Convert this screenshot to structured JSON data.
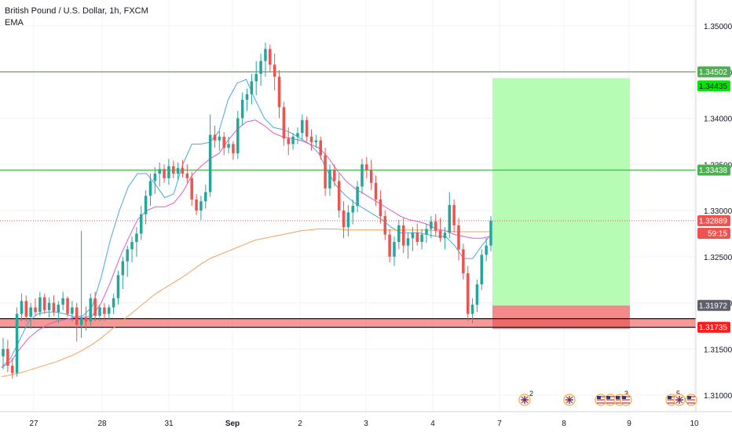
{
  "chart_data": {
    "type": "candlestick",
    "title": "British Pound / U.S. Dollar, 1h, FXCM",
    "indicator_label": "EMA",
    "x_axis": {
      "tick_labels": [
        "27",
        "28",
        "31",
        "Sep",
        "2",
        "3",
        "4",
        "7",
        "8",
        "9",
        "10"
      ]
    },
    "y_axis": {
      "range": [
        1.3085,
        1.3552
      ],
      "tick_labels": [
        "1.35000",
        "1.34500",
        "1.34000",
        "1.33500",
        "1.33000",
        "1.32500",
        "1.32000",
        "1.31500",
        "1.31000"
      ]
    },
    "price_levels": [
      {
        "label": "1.34502",
        "kind": "horizontal-line",
        "color": "#4caf50"
      },
      {
        "label": "1.34435",
        "kind": "take-profit",
        "color": "#00e600"
      },
      {
        "label": "1.33438",
        "kind": "horizontal-line",
        "color": "#4caf50"
      },
      {
        "label": "1.32889",
        "kind": "last-price",
        "color": "#f05350"
      },
      {
        "label": "59:15",
        "kind": "countdown",
        "color": "#f05350"
      },
      {
        "label": "1.31972",
        "kind": "entry",
        "color": "#5d606b"
      },
      {
        "label": "1.31735",
        "kind": "stop-loss",
        "color": "#ff1c1c"
      }
    ],
    "candles": [
      [
        1.3142,
        1.3162,
        1.3128,
        1.315
      ],
      [
        1.315,
        1.316,
        1.3125,
        1.3132
      ],
      [
        1.3132,
        1.314,
        1.3118,
        1.3124
      ],
      [
        1.3124,
        1.3195,
        1.312,
        1.3188
      ],
      [
        1.3188,
        1.321,
        1.318,
        1.3202
      ],
      [
        1.3202,
        1.3208,
        1.318,
        1.3185
      ],
      [
        1.3185,
        1.32,
        1.3172,
        1.3195
      ],
      [
        1.3195,
        1.3205,
        1.3186,
        1.319
      ],
      [
        1.319,
        1.3212,
        1.3186,
        1.3206
      ],
      [
        1.3206,
        1.321,
        1.3188,
        1.3192
      ],
      [
        1.3192,
        1.3206,
        1.3184,
        1.32
      ],
      [
        1.32,
        1.3208,
        1.3186,
        1.319
      ],
      [
        1.319,
        1.3202,
        1.3178,
        1.3198
      ],
      [
        1.3198,
        1.3212,
        1.3192,
        1.3205
      ],
      [
        1.3205,
        1.3207,
        1.3185,
        1.3188
      ],
      [
        1.3188,
        1.3202,
        1.318,
        1.3195
      ],
      [
        1.3195,
        1.32,
        1.3158,
        1.3176
      ],
      [
        1.3176,
        1.3278,
        1.3162,
        1.3184
      ],
      [
        1.3184,
        1.3196,
        1.317,
        1.318
      ],
      [
        1.318,
        1.321,
        1.3175,
        1.3205
      ],
      [
        1.3205,
        1.3212,
        1.318,
        1.3186
      ],
      [
        1.3186,
        1.3198,
        1.318,
        1.3195
      ],
      [
        1.3195,
        1.32,
        1.318,
        1.3188
      ],
      [
        1.3188,
        1.3198,
        1.3182,
        1.3195
      ],
      [
        1.3195,
        1.321,
        1.3188,
        1.3205
      ],
      [
        1.3205,
        1.3235,
        1.3198,
        1.323
      ],
      [
        1.323,
        1.325,
        1.3215,
        1.3245
      ],
      [
        1.3245,
        1.3262,
        1.3228,
        1.3258
      ],
      [
        1.3258,
        1.3272,
        1.3244,
        1.3266
      ],
      [
        1.3266,
        1.3282,
        1.325,
        1.3275
      ],
      [
        1.3275,
        1.3305,
        1.3268,
        1.3296
      ],
      [
        1.3296,
        1.3322,
        1.3285,
        1.3316
      ],
      [
        1.3316,
        1.334,
        1.3305,
        1.3332
      ],
      [
        1.3332,
        1.3347,
        1.3318,
        1.334
      ],
      [
        1.334,
        1.3352,
        1.3326,
        1.3345
      ],
      [
        1.3345,
        1.335,
        1.333,
        1.3335
      ],
      [
        1.3335,
        1.3356,
        1.3328,
        1.3348
      ],
      [
        1.3348,
        1.3354,
        1.3335,
        1.334
      ],
      [
        1.334,
        1.3352,
        1.3334,
        1.3346
      ],
      [
        1.3346,
        1.3355,
        1.3336,
        1.334
      ],
      [
        1.334,
        1.335,
        1.333,
        1.3335
      ],
      [
        1.3335,
        1.3342,
        1.3305,
        1.3312
      ],
      [
        1.3312,
        1.3318,
        1.3295,
        1.33
      ],
      [
        1.33,
        1.3316,
        1.329,
        1.331
      ],
      [
        1.331,
        1.3328,
        1.3302,
        1.332
      ],
      [
        1.332,
        1.3404,
        1.3315,
        1.3382
      ],
      [
        1.3382,
        1.3392,
        1.3368,
        1.3376
      ],
      [
        1.3376,
        1.3386,
        1.3365,
        1.338
      ],
      [
        1.338,
        1.3385,
        1.336,
        1.3368
      ],
      [
        1.3368,
        1.338,
        1.3362,
        1.3372
      ],
      [
        1.3372,
        1.3375,
        1.3355,
        1.3362
      ],
      [
        1.3362,
        1.3408,
        1.3356,
        1.34
      ],
      [
        1.34,
        1.3428,
        1.3392,
        1.342
      ],
      [
        1.342,
        1.3432,
        1.3408,
        1.3426
      ],
      [
        1.3426,
        1.3448,
        1.3415,
        1.344
      ],
      [
        1.344,
        1.3462,
        1.3425,
        1.3448
      ],
      [
        1.3448,
        1.347,
        1.3435,
        1.3462
      ],
      [
        1.3462,
        1.3482,
        1.3445,
        1.3475
      ],
      [
        1.3475,
        1.348,
        1.345,
        1.3458
      ],
      [
        1.3458,
        1.347,
        1.343,
        1.3445
      ],
      [
        1.3445,
        1.3452,
        1.34,
        1.3412
      ],
      [
        1.3412,
        1.3418,
        1.337,
        1.3378
      ],
      [
        1.3378,
        1.339,
        1.336,
        1.3372
      ],
      [
        1.3372,
        1.3384,
        1.3366,
        1.338
      ],
      [
        1.338,
        1.339,
        1.3372,
        1.3384
      ],
      [
        1.3384,
        1.3404,
        1.3376,
        1.3398
      ],
      [
        1.3398,
        1.3402,
        1.3375,
        1.338
      ],
      [
        1.338,
        1.3388,
        1.3365,
        1.3374
      ],
      [
        1.3374,
        1.3382,
        1.3368,
        1.3376
      ],
      [
        1.3376,
        1.338,
        1.3355,
        1.336
      ],
      [
        1.336,
        1.3368,
        1.3316,
        1.3324
      ],
      [
        1.3324,
        1.335,
        1.3316,
        1.3344
      ],
      [
        1.3344,
        1.335,
        1.3326,
        1.3332
      ],
      [
        1.3332,
        1.334,
        1.3292,
        1.33
      ],
      [
        1.33,
        1.331,
        1.327,
        1.3282
      ],
      [
        1.3282,
        1.3306,
        1.3272,
        1.3298
      ],
      [
        1.3298,
        1.3312,
        1.3285,
        1.3305
      ],
      [
        1.3305,
        1.3332,
        1.3298,
        1.3326
      ],
      [
        1.3326,
        1.3356,
        1.3318,
        1.335
      ],
      [
        1.335,
        1.3358,
        1.3335,
        1.3344
      ],
      [
        1.3344,
        1.3355,
        1.3322,
        1.333
      ],
      [
        1.333,
        1.3338,
        1.3305,
        1.3312
      ],
      [
        1.3312,
        1.3322,
        1.3286,
        1.3294
      ],
      [
        1.3294,
        1.33,
        1.3268,
        1.3274
      ],
      [
        1.3274,
        1.328,
        1.3244,
        1.325
      ],
      [
        1.325,
        1.3272,
        1.324,
        1.3266
      ],
      [
        1.3266,
        1.329,
        1.3258,
        1.3284
      ],
      [
        1.3284,
        1.3292,
        1.3254,
        1.3262
      ],
      [
        1.3262,
        1.3276,
        1.3248,
        1.327
      ],
      [
        1.327,
        1.3282,
        1.3256,
        1.3276
      ],
      [
        1.3276,
        1.3286,
        1.3262,
        1.3266
      ],
      [
        1.3266,
        1.328,
        1.3258,
        1.3274
      ],
      [
        1.3274,
        1.3286,
        1.3265,
        1.328
      ],
      [
        1.328,
        1.3294,
        1.327,
        1.3288
      ],
      [
        1.3288,
        1.3296,
        1.3272,
        1.3278
      ],
      [
        1.3278,
        1.3292,
        1.3266,
        1.327
      ],
      [
        1.327,
        1.3282,
        1.3258,
        1.3276
      ],
      [
        1.3276,
        1.332,
        1.327,
        1.3306
      ],
      [
        1.3306,
        1.3312,
        1.3276,
        1.3284
      ],
      [
        1.3284,
        1.3292,
        1.3246,
        1.3258
      ],
      [
        1.3258,
        1.3264,
        1.3225,
        1.3232
      ],
      [
        1.3232,
        1.324,
        1.318,
        1.3188
      ],
      [
        1.3188,
        1.3205,
        1.3178,
        1.3198
      ],
      [
        1.3198,
        1.3225,
        1.319,
        1.322
      ],
      [
        1.322,
        1.3258,
        1.3214,
        1.3252
      ],
      [
        1.3252,
        1.327,
        1.3245,
        1.3262
      ],
      [
        1.3262,
        1.3294,
        1.3256,
        1.3289
      ]
    ],
    "ema_series": [
      {
        "color": "#4aa8e0",
        "values": [
          1.313,
          1.314,
          1.316,
          1.318,
          1.3188,
          1.319,
          1.319,
          1.3188,
          1.3185,
          1.3186,
          1.3196,
          1.3228,
          1.3268,
          1.33,
          1.3326,
          1.334,
          1.334,
          1.3328,
          1.3314,
          1.3318,
          1.335,
          1.3372,
          1.3372,
          1.3374,
          1.3386,
          1.342,
          1.3438,
          1.3442,
          1.342,
          1.34,
          1.339,
          1.3388,
          1.3384,
          1.3378,
          1.3372,
          1.3362,
          1.3342,
          1.3326,
          1.3316,
          1.3308,
          1.3302,
          1.3296,
          1.329,
          1.3282,
          1.3276,
          1.3276,
          1.3276,
          1.3274,
          1.3272,
          1.3272,
          1.3262,
          1.3248,
          1.3248,
          1.3262,
          1.3274
        ]
      },
      {
        "color": "#e05ac8",
        "values": [
          1.313,
          1.3136,
          1.315,
          1.3162,
          1.317,
          1.3176,
          1.318,
          1.3182,
          1.3184,
          1.3184,
          1.3186,
          1.32,
          1.3222,
          1.3248,
          1.327,
          1.329,
          1.33,
          1.3304,
          1.3304,
          1.3308,
          1.332,
          1.3338,
          1.3348,
          1.3356,
          1.3362,
          1.3376,
          1.3388,
          1.3396,
          1.3398,
          1.3392,
          1.3384,
          1.338,
          1.3378,
          1.3376,
          1.3372,
          1.3368,
          1.3358,
          1.3344,
          1.3332,
          1.3324,
          1.3318,
          1.3312,
          1.3306,
          1.33,
          1.3294,
          1.329,
          1.3288,
          1.3285,
          1.328,
          1.3278,
          1.3274,
          1.3272,
          1.327,
          1.327,
          1.3272
        ]
      },
      {
        "color": "#f5a05a",
        "values": [
          1.312,
          1.3122,
          1.3124,
          1.3127,
          1.313,
          1.3133,
          1.3136,
          1.314,
          1.3144,
          1.3149,
          1.3155,
          1.3162,
          1.317,
          1.3178,
          1.3186,
          1.3194,
          1.3202,
          1.321,
          1.3216,
          1.3222,
          1.3228,
          1.3235,
          1.3242,
          1.3248,
          1.3252,
          1.3256,
          1.326,
          1.3264,
          1.3268,
          1.327,
          1.3272,
          1.3274,
          1.3276,
          1.3278,
          1.3279,
          1.328,
          1.328,
          1.328,
          1.3279,
          1.3279,
          1.3279,
          1.3279,
          1.3279,
          1.3279,
          1.3279,
          1.3279,
          1.3279,
          1.3279,
          1.3278,
          1.3278,
          1.3277,
          1.3277,
          1.3277,
          1.3277,
          1.3277
        ]
      }
    ],
    "colors": {
      "up": "#26a69a",
      "down": "#ef5350",
      "target_zone": "#b7fcb4",
      "stop_zone": "#f48a8a",
      "grid": "#f0f3fa",
      "axis_text": "#131722"
    },
    "events": [
      {
        "label": "2",
        "icon": "uk-flag-icon"
      },
      {
        "label": "",
        "icon": "uk-flag-icon"
      },
      {
        "label": "",
        "icon": "us-flag-icon"
      },
      {
        "label": "",
        "icon": "us-flag-icon"
      },
      {
        "label": "3",
        "icon": "us-flag-icon"
      },
      {
        "label": "",
        "icon": "us-flag-icon"
      },
      {
        "label": "5",
        "icon": "us-flag-icon"
      },
      {
        "label": "",
        "icon": "uk-flag-icon"
      },
      {
        "label": "",
        "icon": "us-flag-icon"
      }
    ]
  }
}
